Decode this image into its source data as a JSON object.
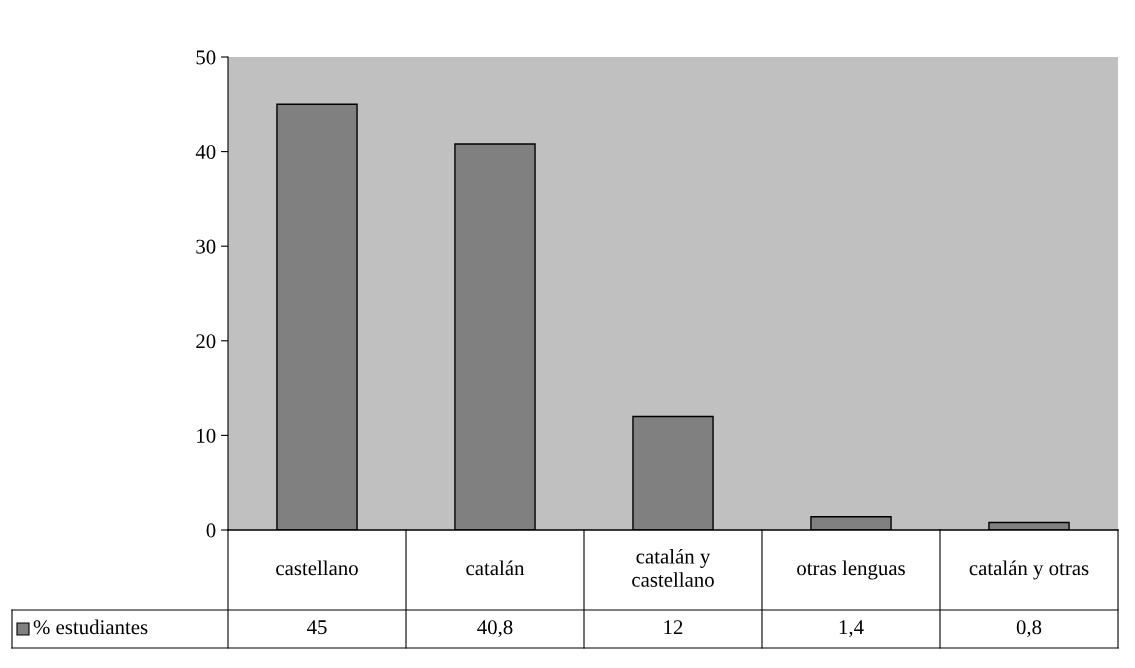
{
  "chart_data": {
    "type": "bar",
    "categories": [
      "castellano",
      "catalán",
      "catalán y castellano",
      "otras lenguas",
      "catalán y otras"
    ],
    "series": [
      {
        "name": "% estudiantes",
        "color": "#808080",
        "values": [
          45,
          40.8,
          12,
          1.4,
          0.8
        ],
        "value_labels": [
          "45",
          "40,8",
          "12",
          "1,4",
          "0,8"
        ]
      }
    ],
    "ylim": [
      0,
      50
    ],
    "yticks": [
      0,
      10,
      20,
      30,
      40,
      50
    ],
    "grid": false,
    "legend": "bottom"
  }
}
